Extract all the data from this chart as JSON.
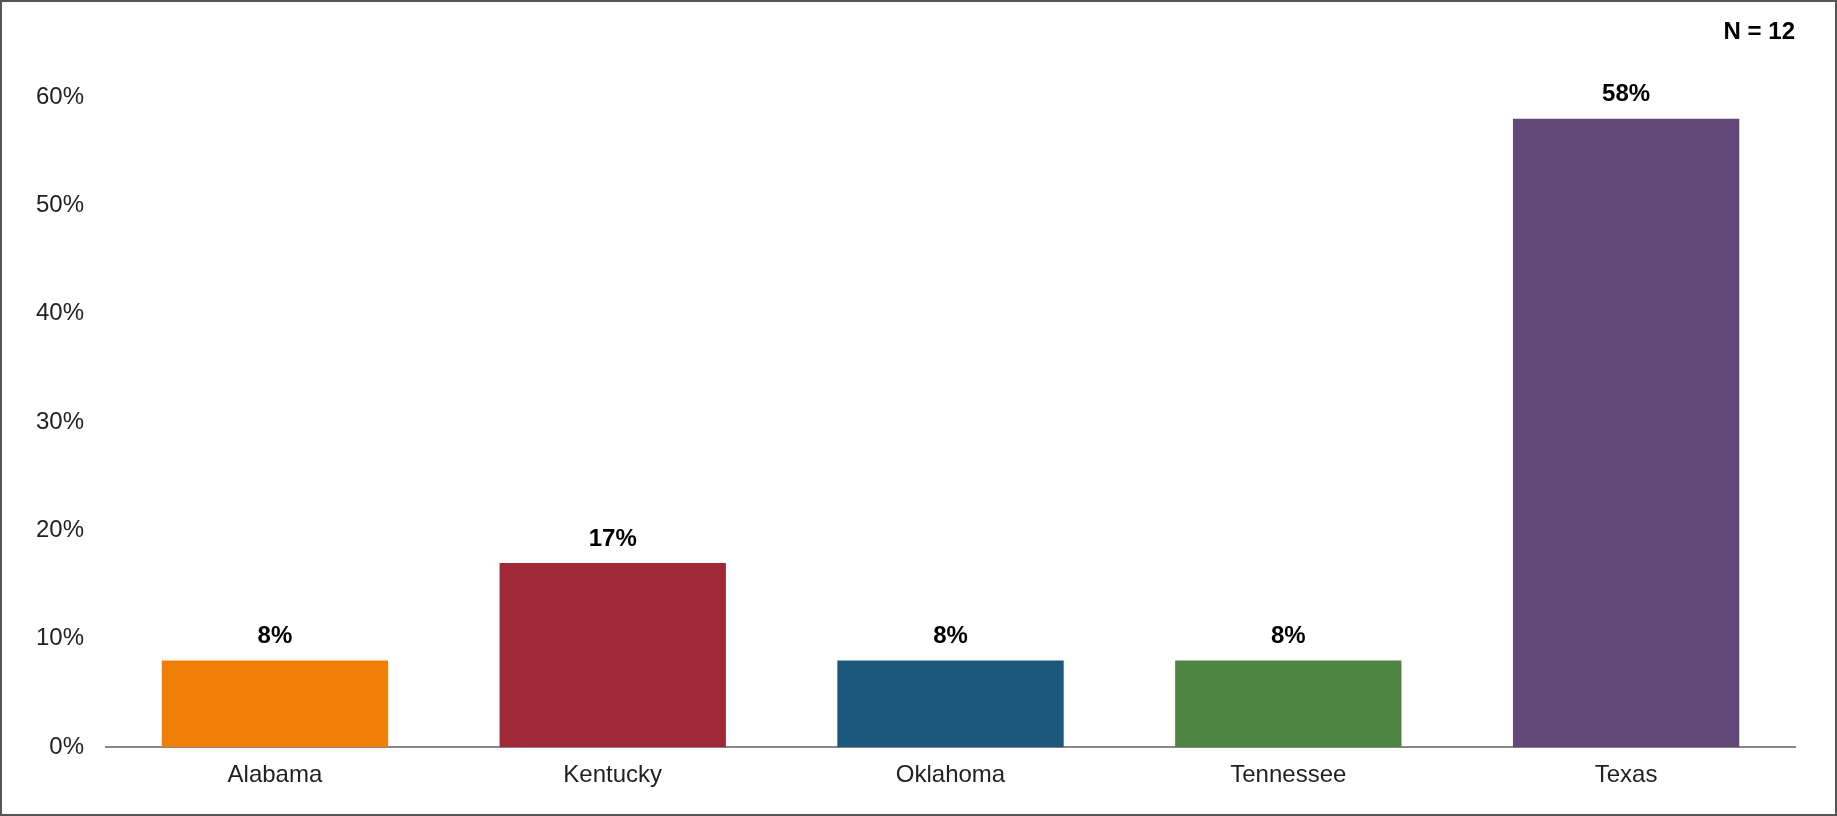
{
  "chart_data": {
    "type": "bar",
    "categories": [
      "Alabama",
      "Kentucky",
      "Oklahoma",
      "Tennessee",
      "Texas"
    ],
    "values": [
      8,
      17,
      8,
      8,
      58
    ],
    "colors": [
      "#f07f09",
      "#9f2936",
      "#1b587c",
      "#4e8542",
      "#604878"
    ],
    "ylim": [
      0,
      60
    ],
    "yticks": [
      {
        "value": 0,
        "label": "0%"
      },
      {
        "value": 10,
        "label": "10%"
      },
      {
        "value": 20,
        "label": "20%"
      },
      {
        "value": 30,
        "label": "30%"
      },
      {
        "value": 40,
        "label": "40%"
      },
      {
        "value": 50,
        "label": "50%"
      },
      {
        "value": 60,
        "label": "60%"
      }
    ],
    "value_labels": [
      "8%",
      "17%",
      "8%",
      "8%",
      "58%"
    ],
    "annotations": [
      "N = 12"
    ],
    "grid": false,
    "legend": false
  }
}
